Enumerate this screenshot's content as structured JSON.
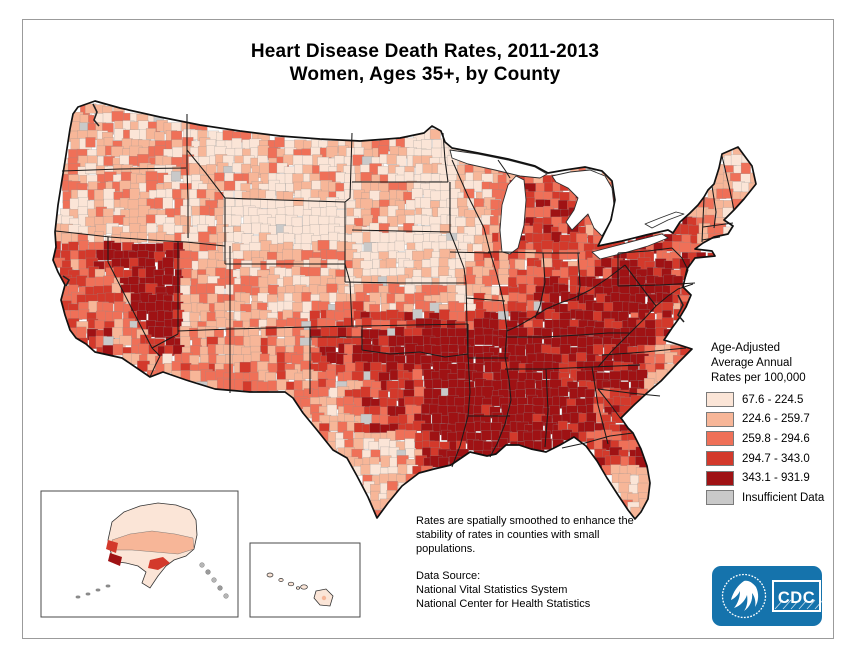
{
  "title": {
    "line1": "Heart Disease Death Rates, 2011-2013",
    "line2": "Women, Ages 35+, by County"
  },
  "legend": {
    "heading_lines": [
      "Age-Adjusted",
      "Average Annual",
      "Rates per 100,000"
    ],
    "classes": [
      {
        "label": "67.6 - 224.5",
        "color": "#fbe5d7"
      },
      {
        "label": "224.6 - 259.7",
        "color": "#f7b698"
      },
      {
        "label": "259.8 - 294.6",
        "color": "#ef7058"
      },
      {
        "label": "294.7 - 343.0",
        "color": "#d3392b"
      },
      {
        "label": "343.1 - 931.9",
        "color": "#9f1214"
      },
      {
        "label": "Insufficient Data",
        "color": "#c9c9c9"
      }
    ]
  },
  "notes": {
    "smoothing": "Rates are spatially smoothed to enhance the stability of rates in counties with small populations.",
    "source": {
      "label": "Data Source:",
      "line1": "National Vital Statistics System",
      "line2": "National Center for Health Statistics"
    }
  },
  "logo": {
    "text": "CDC",
    "bg": "#1573ac"
  },
  "chart_data": {
    "type": "choropleth_map",
    "title": "Heart Disease Death Rates, 2011-2013, Women, Ages 35+, by County",
    "geography": "United States counties, with Alaska and Hawaii insets",
    "measure": "Age-Adjusted Average Annual Rates per 100,000",
    "period": "2011-2013",
    "population": "Women, Ages 35+",
    "classes": [
      {
        "label": "67.6 - 224.5",
        "range": [
          67.6,
          224.5
        ],
        "color": "#fbe5d7"
      },
      {
        "label": "224.6 - 259.7",
        "range": [
          224.6,
          259.7
        ],
        "color": "#f7b698"
      },
      {
        "label": "259.8 - 294.6",
        "range": [
          259.8,
          294.6
        ],
        "color": "#ef7058"
      },
      {
        "label": "294.7 - 343.0",
        "range": [
          294.7,
          343.0
        ],
        "color": "#d3392b"
      },
      {
        "label": "343.1 - 931.9",
        "range": [
          343.1,
          931.9
        ],
        "color": "#9f1214"
      },
      {
        "label": "Insufficient Data",
        "range": null,
        "color": "#c9c9c9"
      }
    ],
    "regional_pattern": {
      "highest": "Deep South (OK, AR, LA, MS, AL, TN, GA), southern Appalachia (KY, WV), Nevada, east Texas, NY/PA",
      "lowest": "Mountain West (CO, UT, ID, MT, WY), upper Midwest (MN, ND, SD), New England, Florida peninsula, south Texas"
    },
    "insets": [
      "Alaska",
      "Hawaii"
    ]
  }
}
